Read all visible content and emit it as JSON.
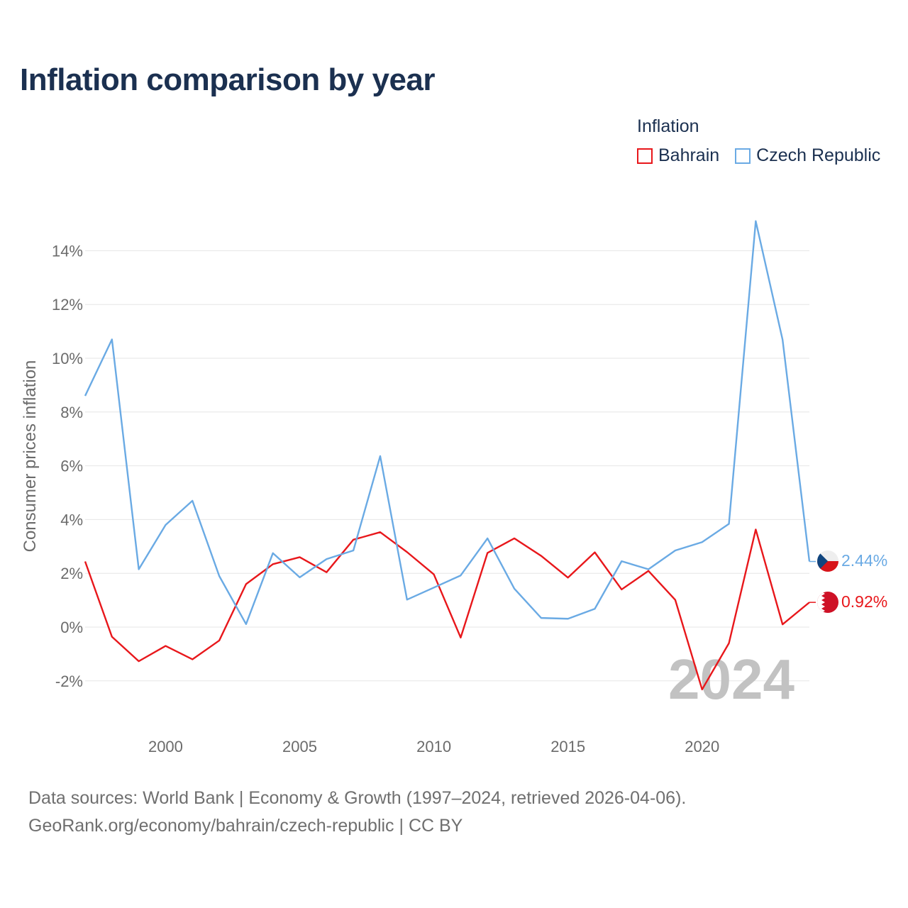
{
  "title": "Inflation comparison by year",
  "legend": {
    "title": "Inflation",
    "items": [
      {
        "name": "Bahrain",
        "color": "#e8171b"
      },
      {
        "name": "Czech Republic",
        "color": "#6aaae4"
      }
    ]
  },
  "chart_data": {
    "type": "line",
    "title": "Inflation comparison by year",
    "xlabel": "",
    "ylabel": "Consumer prices inflation",
    "xlim": [
      1997,
      2024
    ],
    "ylim": [
      -3,
      15
    ],
    "yticks": [
      -2,
      0,
      2,
      4,
      6,
      8,
      10,
      12,
      14
    ],
    "ytick_labels": [
      "-2%",
      "0%",
      "2%",
      "4%",
      "6%",
      "8%",
      "10%",
      "12%",
      "14%"
    ],
    "xticks": [
      2000,
      2005,
      2010,
      2015,
      2020
    ],
    "xtick_labels": [
      "2000",
      "2005",
      "2010",
      "2015",
      "2020"
    ],
    "grid": true,
    "x": [
      1997,
      1998,
      1999,
      2000,
      2001,
      2002,
      2003,
      2004,
      2005,
      2006,
      2007,
      2008,
      2009,
      2010,
      2011,
      2012,
      2013,
      2014,
      2015,
      2016,
      2017,
      2018,
      2019,
      2020,
      2021,
      2022,
      2023,
      2024
    ],
    "series": [
      {
        "name": "Bahrain",
        "color": "#e8171b",
        "values": [
          2.44,
          -0.36,
          -1.27,
          -0.7,
          -1.2,
          -0.5,
          1.6,
          2.34,
          2.6,
          2.04,
          3.25,
          3.53,
          2.79,
          1.96,
          -0.39,
          2.76,
          3.3,
          2.65,
          1.84,
          2.78,
          1.4,
          2.09,
          1.01,
          -2.32,
          -0.6,
          3.63,
          0.1,
          0.92
        ],
        "end_label": "0.92%"
      },
      {
        "name": "Czech Republic",
        "color": "#6aaae4",
        "values": [
          8.6,
          10.7,
          2.15,
          3.8,
          4.7,
          1.9,
          0.11,
          2.75,
          1.85,
          2.53,
          2.85,
          6.36,
          1.02,
          1.47,
          1.92,
          3.3,
          1.43,
          0.34,
          0.31,
          0.68,
          2.45,
          2.15,
          2.85,
          3.16,
          3.84,
          15.1,
          10.69,
          2.44
        ],
        "end_label": "2.44%"
      }
    ],
    "annotation": "2024"
  },
  "footer": {
    "line1": "Data sources: World Bank | Economy & Growth (1997–2024, retrieved 2026-04-06).",
    "line2": "GeoRank.org/economy/bahrain/czech-republic | CC BY"
  }
}
